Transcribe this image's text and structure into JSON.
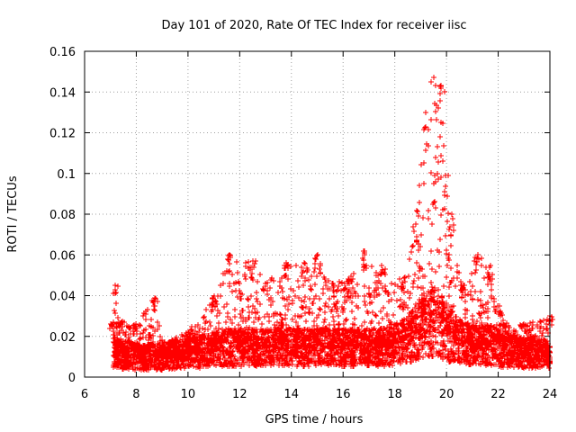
{
  "chart_data": {
    "type": "scatter",
    "title": "Day 101 of 2020, Rate Of TEC Index for receiver iisc",
    "xlabel": "GPS time / hours",
    "ylabel": "ROTI / TECUs",
    "xlim": [
      6,
      24
    ],
    "ylim": [
      0,
      0.16
    ],
    "x_ticks": [
      6,
      8,
      10,
      12,
      14,
      16,
      18,
      20,
      22,
      24
    ],
    "y_ticks": [
      0,
      0.02,
      0.04,
      0.06,
      0.08,
      0.1,
      0.12,
      0.14,
      0.16
    ],
    "x_tick_labels": [
      "6",
      "8",
      "10",
      "12",
      "14",
      "16",
      "18",
      "20",
      "22",
      "24"
    ],
    "y_tick_labels": [
      "0",
      "0.02",
      "0.04",
      "0.06",
      "0.08",
      "0.1",
      "0.12",
      "0.14",
      "0.16"
    ],
    "grid": true,
    "marker": "+",
    "series_color": "#ff0000",
    "data_start_hour": 7.1,
    "data_end_hour": 24.0,
    "envelope": [
      {
        "x": 7.1,
        "base": 0.012,
        "peak": 0.027
      },
      {
        "x": 7.2,
        "base": 0.012,
        "peak": 0.045
      },
      {
        "x": 7.3,
        "base": 0.012,
        "peak": 0.029
      },
      {
        "x": 8.0,
        "base": 0.01,
        "peak": 0.026
      },
      {
        "x": 8.7,
        "base": 0.01,
        "peak": 0.039
      },
      {
        "x": 9.0,
        "base": 0.01,
        "peak": 0.018
      },
      {
        "x": 10.0,
        "base": 0.012,
        "peak": 0.022
      },
      {
        "x": 11.0,
        "base": 0.014,
        "peak": 0.04
      },
      {
        "x": 11.6,
        "base": 0.015,
        "peak": 0.06
      },
      {
        "x": 12.5,
        "base": 0.015,
        "peak": 0.057
      },
      {
        "x": 13.0,
        "base": 0.015,
        "peak": 0.046
      },
      {
        "x": 13.8,
        "base": 0.015,
        "peak": 0.056
      },
      {
        "x": 14.5,
        "base": 0.015,
        "peak": 0.056
      },
      {
        "x": 15.0,
        "base": 0.015,
        "peak": 0.06
      },
      {
        "x": 15.6,
        "base": 0.015,
        "peak": 0.046
      },
      {
        "x": 16.2,
        "base": 0.015,
        "peak": 0.048
      },
      {
        "x": 16.8,
        "base": 0.015,
        "peak": 0.062
      },
      {
        "x": 17.5,
        "base": 0.015,
        "peak": 0.055
      },
      {
        "x": 18.2,
        "base": 0.017,
        "peak": 0.048
      },
      {
        "x": 18.8,
        "base": 0.022,
        "peak": 0.075
      },
      {
        "x": 19.2,
        "base": 0.025,
        "peak": 0.13
      },
      {
        "x": 19.5,
        "base": 0.027,
        "peak": 0.147
      },
      {
        "x": 19.8,
        "base": 0.025,
        "peak": 0.143
      },
      {
        "x": 20.2,
        "base": 0.02,
        "peak": 0.08
      },
      {
        "x": 20.6,
        "base": 0.017,
        "peak": 0.045
      },
      {
        "x": 21.2,
        "base": 0.016,
        "peak": 0.06
      },
      {
        "x": 21.7,
        "base": 0.016,
        "peak": 0.055
      },
      {
        "x": 22.2,
        "base": 0.014,
        "peak": 0.028
      },
      {
        "x": 23.0,
        "base": 0.012,
        "peak": 0.026
      },
      {
        "x": 24.0,
        "base": 0.012,
        "peak": 0.03
      }
    ]
  }
}
